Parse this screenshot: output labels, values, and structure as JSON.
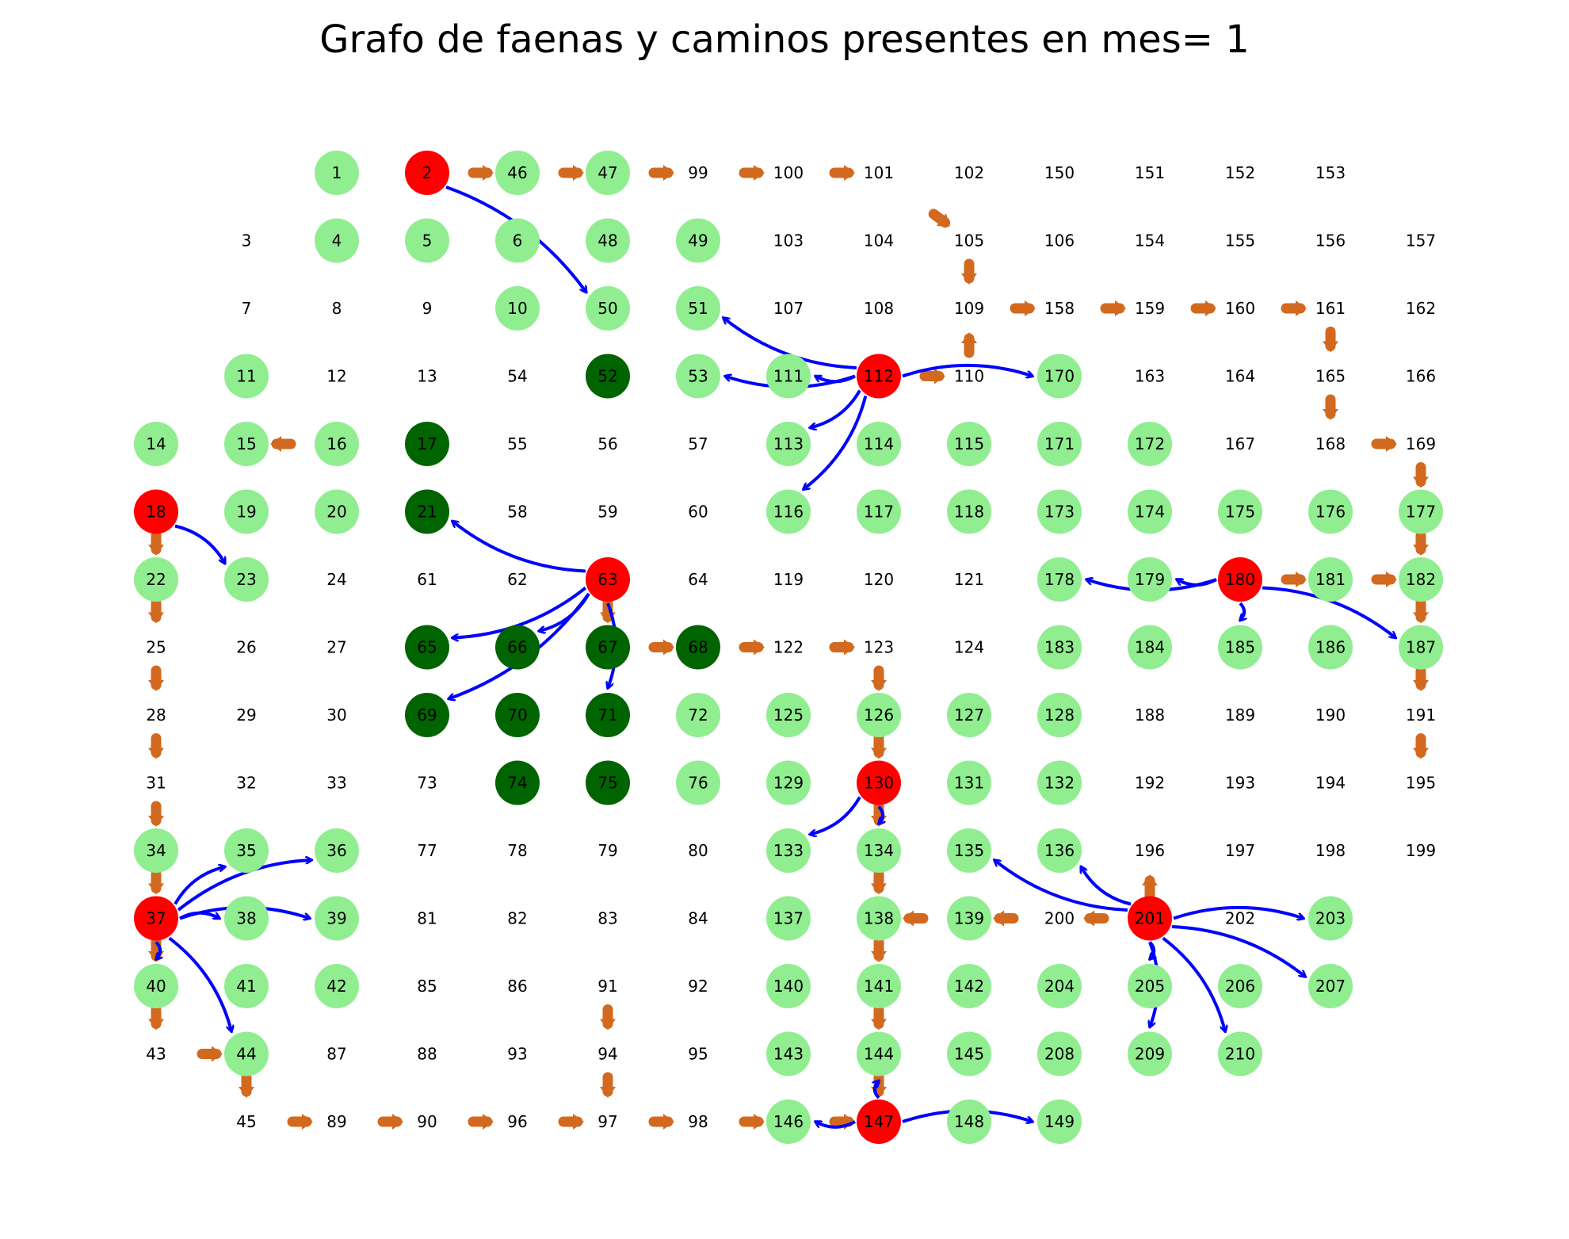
{
  "title": "Grafo de faenas y caminos presentes en mes= 1",
  "colors": {
    "red": "#ff0000",
    "light": "#90ee90",
    "dark": "#006400",
    "blue_edge": "#0000ff",
    "orange_edge": "#d2691e"
  },
  "grid": [
    [
      null,
      null,
      1,
      2,
      46,
      47,
      99,
      100,
      101,
      102,
      150,
      151,
      152,
      153
    ],
    [
      null,
      3,
      4,
      5,
      6,
      48,
      49,
      103,
      104,
      105,
      106,
      154,
      155,
      156,
      157
    ],
    [
      null,
      7,
      8,
      9,
      10,
      50,
      51,
      107,
      108,
      109,
      158,
      159,
      160,
      161,
      162
    ],
    [
      null,
      11,
      12,
      13,
      54,
      52,
      53,
      111,
      112,
      110,
      170,
      163,
      164,
      165,
      166
    ],
    [
      14,
      15,
      16,
      17,
      55,
      56,
      57,
      113,
      114,
      115,
      171,
      172,
      167,
      168,
      169
    ],
    [
      18,
      19,
      20,
      21,
      58,
      59,
      60,
      116,
      117,
      118,
      173,
      174,
      175,
      176,
      177
    ],
    [
      22,
      23,
      24,
      61,
      62,
      63,
      64,
      119,
      120,
      121,
      178,
      179,
      180,
      181,
      182
    ],
    [
      25,
      26,
      27,
      65,
      66,
      67,
      68,
      122,
      123,
      124,
      183,
      184,
      185,
      186,
      187
    ],
    [
      28,
      29,
      30,
      69,
      70,
      71,
      72,
      125,
      126,
      127,
      128,
      188,
      189,
      190,
      191
    ],
    [
      31,
      32,
      33,
      73,
      74,
      75,
      76,
      129,
      130,
      131,
      132,
      192,
      193,
      194,
      195
    ],
    [
      34,
      35,
      36,
      77,
      78,
      79,
      80,
      133,
      134,
      135,
      136,
      196,
      197,
      198,
      199
    ],
    [
      37,
      38,
      39,
      81,
      82,
      83,
      84,
      137,
      138,
      139,
      200,
      201,
      202,
      203,
      null
    ],
    [
      40,
      41,
      42,
      85,
      86,
      91,
      92,
      140,
      141,
      142,
      204,
      205,
      206,
      207,
      null
    ],
    [
      43,
      44,
      87,
      88,
      93,
      94,
      95,
      143,
      144,
      145,
      208,
      209,
      210,
      null,
      null
    ],
    [
      null,
      45,
      89,
      90,
      96,
      97,
      98,
      146,
      147,
      148,
      149,
      null,
      null,
      null,
      null
    ]
  ],
  "red_nodes": [
    2,
    18,
    37,
    63,
    112,
    130,
    147,
    180,
    201
  ],
  "dark_nodes": [
    52,
    17,
    21,
    65,
    66,
    67,
    68,
    69,
    70,
    71,
    74,
    75
  ],
  "light_nodes": [
    1,
    46,
    47,
    4,
    5,
    6,
    48,
    49,
    10,
    50,
    51,
    11,
    53,
    111,
    170,
    14,
    15,
    16,
    113,
    114,
    115,
    171,
    172,
    19,
    20,
    116,
    117,
    118,
    173,
    174,
    175,
    176,
    177,
    22,
    23,
    178,
    179,
    181,
    182,
    183,
    184,
    185,
    186,
    187,
    72,
    125,
    126,
    127,
    128,
    76,
    129,
    131,
    132,
    34,
    35,
    36,
    133,
    134,
    135,
    136,
    38,
    39,
    137,
    138,
    139,
    203,
    40,
    41,
    42,
    140,
    141,
    142,
    204,
    205,
    206,
    207,
    44,
    143,
    144,
    145,
    208,
    209,
    210,
    146,
    148,
    149
  ],
  "blue_edges": [
    [
      2,
      50
    ],
    [
      112,
      51
    ],
    [
      112,
      53
    ],
    [
      112,
      111
    ],
    [
      112,
      113
    ],
    [
      112,
      116
    ],
    [
      112,
      170
    ],
    [
      18,
      23
    ],
    [
      63,
      21
    ],
    [
      63,
      65
    ],
    [
      63,
      66
    ],
    [
      63,
      69
    ],
    [
      63,
      71
    ],
    [
      180,
      179
    ],
    [
      180,
      178
    ],
    [
      180,
      185
    ],
    [
      180,
      187
    ],
    [
      130,
      133
    ],
    [
      130,
      134
    ],
    [
      37,
      35
    ],
    [
      37,
      36
    ],
    [
      37,
      38
    ],
    [
      37,
      39
    ],
    [
      37,
      40
    ],
    [
      37,
      44
    ],
    [
      201,
      136
    ],
    [
      201,
      135
    ],
    [
      201,
      203
    ],
    [
      201,
      205
    ],
    [
      201,
      207
    ],
    [
      201,
      209
    ],
    [
      201,
      210
    ],
    [
      147,
      144
    ],
    [
      147,
      146
    ],
    [
      147,
      149
    ]
  ],
  "orange_edges": [
    [
      2,
      46
    ],
    [
      46,
      47
    ],
    [
      47,
      99
    ],
    [
      99,
      100
    ],
    [
      100,
      101
    ],
    [
      101,
      105
    ],
    [
      105,
      109
    ],
    [
      109,
      158
    ],
    [
      158,
      159
    ],
    [
      159,
      160
    ],
    [
      160,
      161
    ],
    [
      161,
      165
    ],
    [
      165,
      168
    ],
    [
      168,
      169
    ],
    [
      169,
      177
    ],
    [
      177,
      182
    ],
    [
      182,
      187
    ],
    [
      187,
      191
    ],
    [
      191,
      195
    ],
    [
      112,
      110
    ],
    [
      110,
      109
    ],
    [
      180,
      181
    ],
    [
      181,
      182
    ],
    [
      16,
      15
    ],
    [
      18,
      22
    ],
    [
      22,
      25
    ],
    [
      25,
      28
    ],
    [
      28,
      31
    ],
    [
      31,
      34
    ],
    [
      34,
      37
    ],
    [
      37,
      40
    ],
    [
      40,
      43
    ],
    [
      43,
      44
    ],
    [
      44,
      45
    ],
    [
      45,
      89
    ],
    [
      89,
      90
    ],
    [
      90,
      96
    ],
    [
      96,
      97
    ],
    [
      97,
      98
    ],
    [
      98,
      146
    ],
    [
      146,
      147
    ],
    [
      63,
      67
    ],
    [
      67,
      68
    ],
    [
      68,
      122
    ],
    [
      122,
      123
    ],
    [
      123,
      126
    ],
    [
      126,
      130
    ],
    [
      130,
      134
    ],
    [
      134,
      138
    ],
    [
      138,
      141
    ],
    [
      141,
      144
    ],
    [
      144,
      147
    ],
    [
      139,
      138
    ],
    [
      200,
      139
    ],
    [
      201,
      200
    ],
    [
      201,
      196
    ],
    [
      91,
      94
    ],
    [
      94,
      97
    ]
  ]
}
